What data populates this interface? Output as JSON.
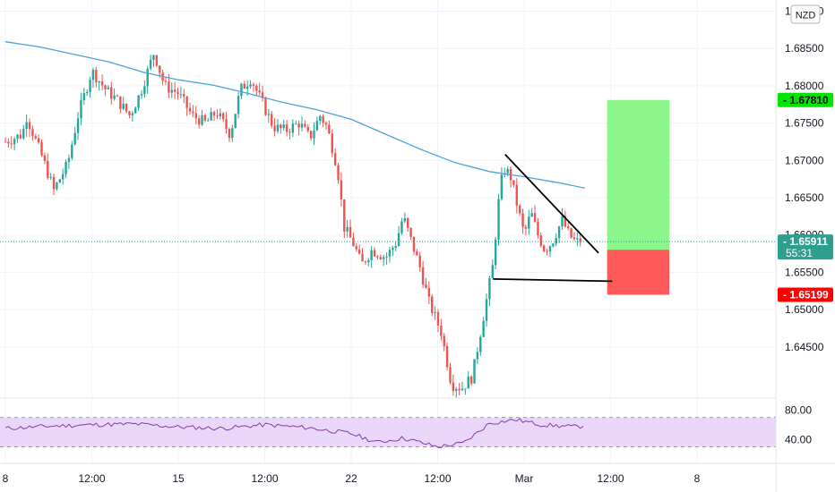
{
  "chart_data": {
    "type": "candlestick",
    "currency_label": "NZD",
    "price_axis": {
      "range": [
        1.6385,
        1.6915
      ],
      "ticks": [
        "1.64500",
        "1.65000",
        "1.65500",
        "1.66000",
        "1.66500",
        "1.67000",
        "1.67500",
        "1.68000",
        "1.68500",
        "1.69000"
      ]
    },
    "time_axis": {
      "labels": [
        "8",
        "12:00",
        "15",
        "12:00",
        "22",
        "12:00",
        "Mar",
        "12:00",
        "8"
      ],
      "label_positions": [
        0,
        0.5,
        1,
        1.5,
        2,
        2.5,
        3,
        3.5,
        4
      ]
    },
    "price_badges": {
      "target": {
        "text": "1.67810",
        "value": 1.6781,
        "color": "#00e600"
      },
      "current": {
        "text": "1.65911",
        "value": 1.65911,
        "countdown": "55:31",
        "color": "#2e9e8f"
      },
      "entry": {
        "text": "1.65803",
        "value": 1.65803,
        "color": "#00e600"
      },
      "stop": {
        "text": "1.65199",
        "value": 1.65199,
        "color": "#ff0000"
      }
    },
    "moving_average": {
      "color": "#4aa3df",
      "points": [
        [
          0,
          1.6859
        ],
        [
          0.2,
          1.6852
        ],
        [
          0.4,
          1.6842
        ],
        [
          0.6,
          1.6832
        ],
        [
          0.8,
          1.6818
        ],
        [
          1.0,
          1.6808
        ],
        [
          1.2,
          1.6801
        ],
        [
          1.4,
          1.679
        ],
        [
          1.6,
          1.6778
        ],
        [
          1.8,
          1.6768
        ],
        [
          2.0,
          1.6755
        ],
        [
          2.2,
          1.6735
        ],
        [
          2.4,
          1.6715
        ],
        [
          2.6,
          1.6697
        ],
        [
          2.8,
          1.6685
        ],
        [
          3.0,
          1.6678
        ],
        [
          3.2,
          1.667
        ],
        [
          3.35,
          1.6663
        ]
      ]
    },
    "path": [
      [
        0,
        1.6725
      ],
      [
        0.1,
        1.6735
      ],
      [
        0.12,
        1.676
      ],
      [
        0.22,
        1.67
      ],
      [
        0.28,
        1.666
      ],
      [
        0.36,
        1.6695
      ],
      [
        0.42,
        1.676
      ],
      [
        0.5,
        1.682
      ],
      [
        0.58,
        1.6795
      ],
      [
        0.65,
        1.678
      ],
      [
        0.72,
        1.676
      ],
      [
        0.78,
        1.679
      ],
      [
        0.86,
        1.6845
      ],
      [
        0.92,
        1.68
      ],
      [
        1.0,
        1.679
      ],
      [
        1.08,
        1.676
      ],
      [
        1.16,
        1.675
      ],
      [
        1.22,
        1.6765
      ],
      [
        1.3,
        1.6735
      ],
      [
        1.36,
        1.6795
      ],
      [
        1.42,
        1.681
      ],
      [
        1.48,
        1.678
      ],
      [
        1.55,
        1.6745
      ],
      [
        1.62,
        1.674
      ],
      [
        1.7,
        1.675
      ],
      [
        1.76,
        1.673
      ],
      [
        1.82,
        1.676
      ],
      [
        1.86,
        1.6745
      ],
      [
        1.92,
        1.669
      ],
      [
        1.96,
        1.661
      ],
      [
        2.02,
        1.6585
      ],
      [
        2.06,
        1.656
      ],
      [
        2.12,
        1.658
      ],
      [
        2.2,
        1.657
      ],
      [
        2.26,
        1.659
      ],
      [
        2.3,
        1.6625
      ],
      [
        2.35,
        1.659
      ],
      [
        2.4,
        1.6555
      ],
      [
        2.45,
        1.651
      ],
      [
        2.52,
        1.647
      ],
      [
        2.58,
        1.64
      ],
      [
        2.64,
        1.6395
      ],
      [
        2.7,
        1.641
      ],
      [
        2.74,
        1.646
      ],
      [
        2.78,
        1.651
      ],
      [
        2.82,
        1.656
      ],
      [
        2.85,
        1.664
      ],
      [
        2.88,
        1.669
      ],
      [
        2.92,
        1.668
      ],
      [
        2.96,
        1.664
      ],
      [
        3.0,
        1.66
      ],
      [
        3.04,
        1.663
      ],
      [
        3.08,
        1.66
      ],
      [
        3.12,
        1.658
      ],
      [
        3.16,
        1.659
      ],
      [
        3.22,
        1.662
      ],
      [
        3.26,
        1.66
      ],
      [
        3.3,
        1.659
      ],
      [
        3.34,
        1.6595
      ]
    ],
    "drawings": {
      "trendline_upper": [
        [
          2.89,
          1.6708
        ],
        [
          3.43,
          1.6576
        ]
      ],
      "trendline_lower": [
        [
          2.82,
          1.6541
        ],
        [
          3.51,
          1.6538
        ]
      ]
    },
    "position": {
      "x_range": [
        3.48,
        3.84
      ],
      "target": 1.6781,
      "entry": 1.65803,
      "stop": 1.65199,
      "profit_color": "#8cf58c",
      "loss_color": "#ff5a5a"
    },
    "rsi": {
      "ticks": [
        "80.00",
        "40.00"
      ],
      "upper_band": 70,
      "lower_band": 30,
      "color": "#7e3fa8",
      "band_fill": "#ead6f8",
      "points": [
        [
          0,
          55
        ],
        [
          0.25,
          58
        ],
        [
          0.5,
          60
        ],
        [
          0.75,
          61
        ],
        [
          1,
          57
        ],
        [
          1.25,
          55
        ],
        [
          1.5,
          60
        ],
        [
          1.75,
          56
        ],
        [
          2,
          48
        ],
        [
          2.15,
          36
        ],
        [
          2.3,
          42
        ],
        [
          2.5,
          30
        ],
        [
          2.65,
          35
        ],
        [
          2.8,
          62
        ],
        [
          2.95,
          67
        ],
        [
          3.1,
          60
        ],
        [
          3.3,
          57
        ],
        [
          3.35,
          59
        ]
      ]
    }
  }
}
